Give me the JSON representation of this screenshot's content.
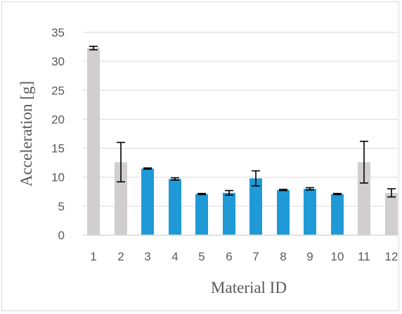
{
  "chart_data": {
    "type": "bar",
    "title": "",
    "xlabel": "Material ID",
    "ylabel": "Acceleration [g]",
    "ylim": [
      0,
      35
    ],
    "yticks": [
      0,
      5,
      10,
      15,
      20,
      25,
      30,
      35
    ],
    "grid": true,
    "legend": "none",
    "categories": [
      "1",
      "2",
      "3",
      "4",
      "5",
      "6",
      "7",
      "8",
      "9",
      "10",
      "11",
      "12"
    ],
    "values": [
      32.3,
      12.6,
      11.5,
      9.7,
      7.1,
      7.3,
      9.8,
      7.8,
      8.0,
      7.1,
      12.6,
      7.3
    ],
    "errors": [
      0.3,
      3.4,
      0.1,
      0.2,
      0.1,
      0.4,
      1.3,
      0.1,
      0.2,
      0.1,
      3.6,
      0.7
    ],
    "bar_colors": [
      "#d0cece",
      "#d0cece",
      "#1f9ad6",
      "#1f9ad6",
      "#1f9ad6",
      "#1f9ad6",
      "#1f9ad6",
      "#1f9ad6",
      "#1f9ad6",
      "#1f9ad6",
      "#d0cece",
      "#d0cece"
    ],
    "grid_color": "#d9d9d9",
    "error_bar_color": "#000000"
  }
}
